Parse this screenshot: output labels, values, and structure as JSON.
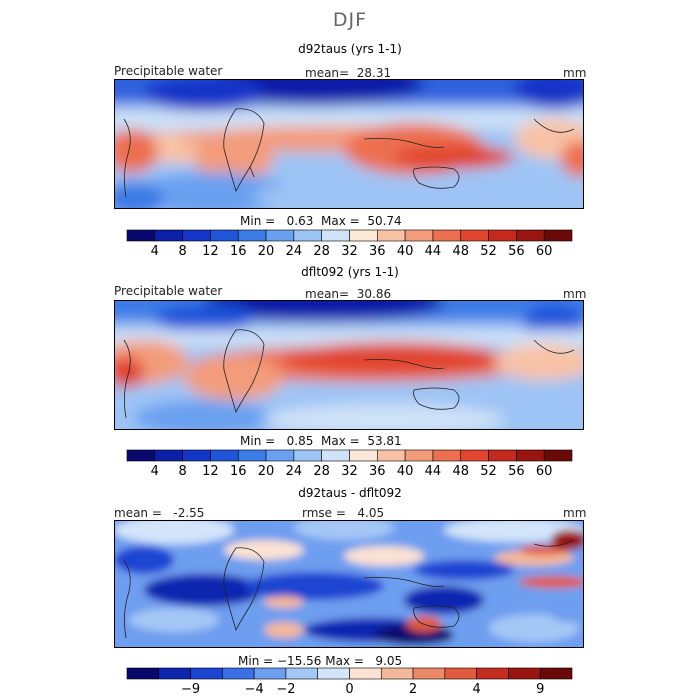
{
  "figure": {
    "season": "DJF"
  },
  "panels": [
    {
      "title": "d92taus (yrs 1-1)",
      "left_label": "Precipitable water",
      "stat_label": "mean=",
      "stat_value": "28.31",
      "units": "mm",
      "min_label": "Min =",
      "min_value": "0.63",
      "max_label": "Max =",
      "max_value": "50.74"
    },
    {
      "title": "dflt092 (yrs 1-1)",
      "left_label": "Precipitable water",
      "stat_label": "mean=",
      "stat_value": "30.86",
      "units": "mm",
      "min_label": "Min =",
      "min_value": "0.85",
      "max_label": "Max =",
      "max_value": "53.81"
    },
    {
      "title": "d92taus - dflt092",
      "left_label": "mean =",
      "left_value": "-2.55",
      "stat_label": "rmse =",
      "stat_value": "4.05",
      "units": "mm",
      "min_label": "Min =",
      "min_value": "−15.56",
      "max_label": "Max =",
      "max_value": "9.05"
    }
  ],
  "colors": {
    "scale_abs": [
      "#08086e",
      "#0b1fa8",
      "#1436c8",
      "#1f55d9",
      "#3c7ce6",
      "#6aa0f0",
      "#9ec4f5",
      "#cfe2f8",
      "#fde8d8",
      "#f8c2a6",
      "#f39c7b",
      "#ec7050",
      "#e1452e",
      "#c5281d",
      "#9a1510",
      "#6b0808"
    ],
    "scale_diff": [
      "#08086e",
      "#0d26b0",
      "#1b44d2",
      "#3a70e6",
      "#6e9eef",
      "#a5c7f6",
      "#d3e5fa",
      "#fbe2d2",
      "#f4b89a",
      "#ec8a68",
      "#e05a3e",
      "#c42d20",
      "#9a1410",
      "#6b0808"
    ]
  },
  "chart_data": [
    {
      "type": "heatmap",
      "title": "d92taus (yrs 1-1)",
      "variable": "Precipitable water",
      "units": "mm",
      "season": "DJF",
      "mean": 28.31,
      "min": 0.63,
      "max": 50.74,
      "contour_levels": [
        4,
        8,
        12,
        16,
        20,
        24,
        28,
        32,
        36,
        40,
        44,
        48,
        52,
        56,
        60
      ],
      "colorbar_tick_labels": [
        "4",
        "8",
        "12",
        "16",
        "20",
        "24",
        "28",
        "32",
        "36",
        "40",
        "44",
        "48",
        "52",
        "56",
        "60"
      ]
    },
    {
      "type": "heatmap",
      "title": "dflt092 (yrs 1-1)",
      "variable": "Precipitable water",
      "units": "mm",
      "season": "DJF",
      "mean": 30.86,
      "min": 0.85,
      "max": 53.81,
      "contour_levels": [
        4,
        8,
        12,
        16,
        20,
        24,
        28,
        32,
        36,
        40,
        44,
        48,
        52,
        56,
        60
      ],
      "colorbar_tick_labels": [
        "4",
        "8",
        "12",
        "16",
        "20",
        "24",
        "28",
        "32",
        "36",
        "40",
        "44",
        "48",
        "52",
        "56",
        "60"
      ]
    },
    {
      "type": "heatmap",
      "title": "d92taus - dflt092",
      "units": "mm",
      "season": "DJF",
      "mean": -2.55,
      "rmse": 4.05,
      "min": -15.56,
      "max": 9.05,
      "colorbar_tick_labels": [
        "−9",
        "−4",
        "−2",
        "0",
        "2",
        "4",
        "9"
      ]
    }
  ]
}
